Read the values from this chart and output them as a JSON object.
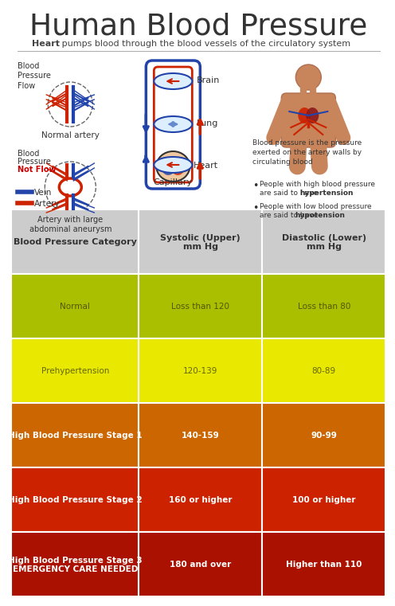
{
  "title": "Human Blood Pressure",
  "subtitle_bold": "Heart",
  "subtitle_rest": " : pumps blood through the blood vessels of the circulatory system",
  "bg_color": "#ffffff",
  "title_color": "#333333",
  "subtitle_color": "#444444",
  "table": {
    "header_bg": "#cccccc",
    "header_text_color": "#333333",
    "col0_header": "Blood Pressure Category",
    "col1_header": "Systolic (Upper)\nmm Hg",
    "col2_header": "Diastolic (Lower)\nmm Hg",
    "rows": [
      {
        "category": "Normal",
        "systolic": "Loss than 120",
        "diastolic": "Loss than 80",
        "bg_color": "#aabf00",
        "text_color": "#555500",
        "bold": false
      },
      {
        "category": "Prehypertension",
        "systolic": "120-139",
        "diastolic": "80-89",
        "bg_color": "#e8e800",
        "text_color": "#666600",
        "bold": false
      },
      {
        "category": "High Blood Pressure Stage 1",
        "systolic": "140-159",
        "diastolic": "90-99",
        "bg_color": "#cc6600",
        "text_color": "#ffffff",
        "bold": true
      },
      {
        "category": "High Blood Pressure Stage 2",
        "systolic": "160 or higher",
        "diastolic": "100 or higher",
        "bg_color": "#cc2200",
        "text_color": "#ffffff",
        "bold": true
      },
      {
        "category": "High Blood Pressure Stage 3\nEMERGENCY CARE NEEDED",
        "systolic": "180 and over",
        "diastolic": "Higher than 110",
        "bg_color": "#aa1100",
        "text_color": "#ffffff",
        "bold": true
      }
    ]
  },
  "diagram_labels": {
    "brain": "Brain",
    "lung": "Lung",
    "heart": "Heart",
    "capillary": "Capillary",
    "vein": "Vein",
    "artery": "Artery",
    "normal_artery": "Normal artery",
    "aneurysm": "Artery with large\nabdominal aneurysm",
    "bp_flow": "Blood\nPressure\nFlow",
    "bp_notflow_line1": "Blood",
    "bp_notflow_line2": "Pressure",
    "bp_notflow_line3": "Not Flow",
    "notflow_color": "#cc0000",
    "bp_desc": "Blood pressure is the pressure\nexerted on the artery walls by\ncirculating blood",
    "bullet1a": "People with high blood pressure",
    "bullet1b": "are said to have ",
    "bullet1c": "hypertension",
    "bullet2a": "People with low blood pressure",
    "bullet2b": "are said to have ",
    "bullet2c": "hypotension",
    "vein_color": "#2244aa",
    "artery_color": "#cc2200"
  }
}
